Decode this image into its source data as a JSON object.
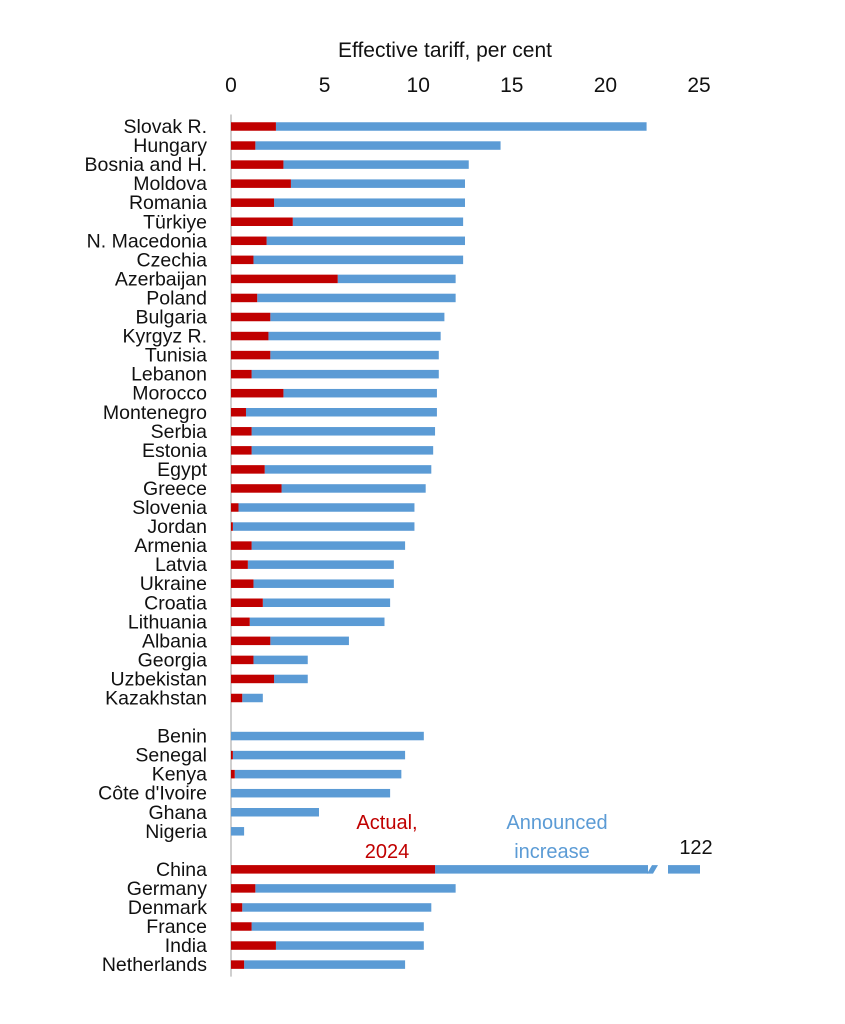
{
  "chart_data": {
    "type": "bar",
    "orientation": "horizontal",
    "stacked": true,
    "title": "Effective tariff, per cent",
    "xlim": [
      0,
      25
    ],
    "xticks": [
      "0",
      "5",
      "10",
      "15",
      "20",
      "25"
    ],
    "x_axis_position": "top",
    "grid": false,
    "colors": {
      "actual": "#c00000",
      "announced": "#5b9bd5"
    },
    "series": [
      {
        "name": "Actual, 2024",
        "color": "#c00000"
      },
      {
        "name": "Announced increase",
        "color": "#5b9bd5"
      }
    ],
    "groups": [
      {
        "categories": [
          "Slovak R.",
          "Hungary",
          "Bosnia and H.",
          "Moldova",
          "Romania",
          "Türkiye",
          "N. Macedonia",
          "Czechia",
          "Azerbaijan",
          "Poland",
          "Bulgaria",
          "Kyrgyz R.",
          "Tunisia",
          "Lebanon",
          "Morocco",
          "Montenegro",
          "Serbia",
          "Estonia",
          "Egypt",
          "Greece",
          "Slovenia",
          "Jordan",
          "Armenia",
          "Latvia",
          "Ukraine",
          "Croatia",
          "Lithuania",
          "Albania",
          "Georgia",
          "Uzbekistan",
          "Kazakhstan"
        ],
        "actual": [
          2.4,
          1.3,
          2.8,
          3.2,
          2.3,
          3.3,
          1.9,
          1.2,
          5.7,
          1.4,
          2.1,
          2.0,
          2.1,
          1.1,
          2.8,
          0.8,
          1.1,
          1.1,
          1.8,
          2.7,
          0.4,
          0.1,
          1.1,
          0.9,
          1.2,
          1.7,
          1.0,
          2.1,
          1.2,
          2.3,
          0.6
        ],
        "announced": [
          19.8,
          13.1,
          9.9,
          9.3,
          10.2,
          9.1,
          10.6,
          11.2,
          6.3,
          10.6,
          9.3,
          9.2,
          9.0,
          10.0,
          8.2,
          10.2,
          9.8,
          9.7,
          8.9,
          7.7,
          9.4,
          9.7,
          8.2,
          7.8,
          7.5,
          6.8,
          7.2,
          4.2,
          2.9,
          1.8,
          1.1
        ]
      },
      {
        "categories": [
          "Benin",
          "Senegal",
          "Kenya",
          "Côte d'Ivoire",
          "Ghana",
          "Nigeria"
        ],
        "actual": [
          0.0,
          0.1,
          0.2,
          0.0,
          0.0,
          0.0
        ],
        "announced": [
          10.3,
          9.2,
          8.9,
          8.5,
          4.7,
          0.7
        ]
      },
      {
        "categories": [
          "China",
          "Germany",
          "Denmark",
          "France",
          "India",
          "Netherlands"
        ],
        "actual": [
          10.9,
          1.3,
          0.6,
          1.1,
          2.4,
          0.7
        ],
        "announced": [
          111.1,
          10.7,
          10.1,
          9.2,
          7.9,
          8.6
        ],
        "totals_printed": {
          "China": "122"
        },
        "axis_break": [
          "China"
        ]
      }
    ],
    "legend": {
      "actual_lines": [
        "Actual,",
        "2024"
      ],
      "announced_lines": [
        "Announced",
        "increase"
      ]
    }
  }
}
